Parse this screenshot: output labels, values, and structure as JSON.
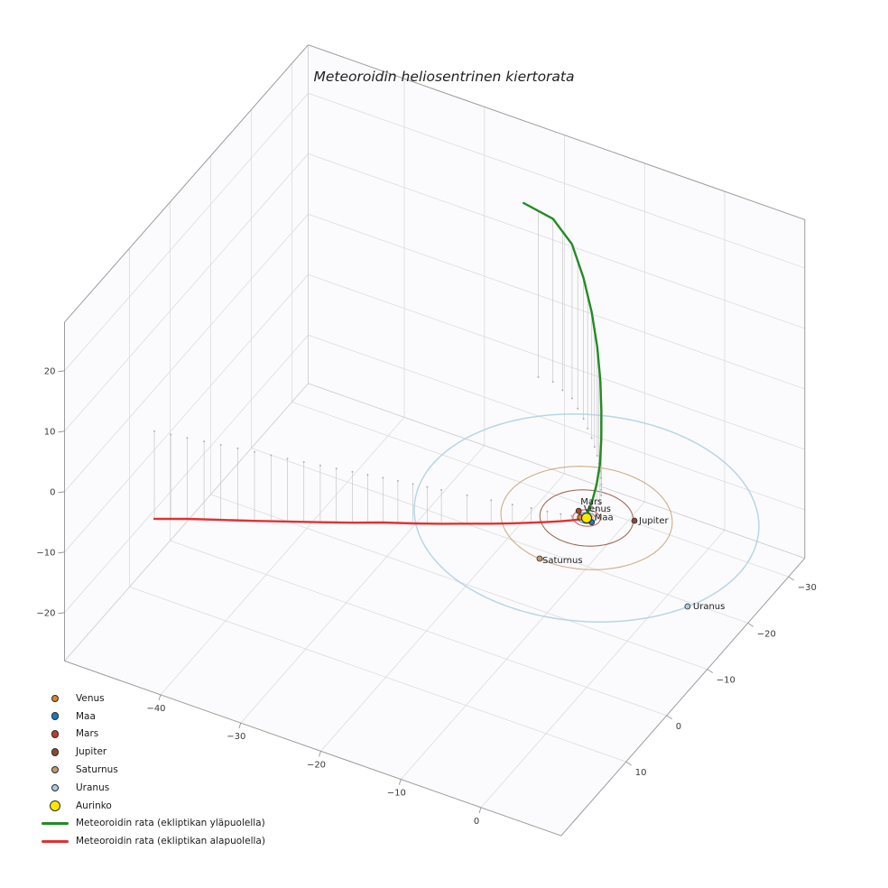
{
  "title": "Meteoroidin heliosentrinen kiertorata",
  "chart_data": {
    "type": "line",
    "projection": "3d",
    "title": "Meteoroidin heliosentrinen kiertorata",
    "grid": true,
    "legend_position": "lower-left",
    "axes": {
      "x": {
        "ticks": [
          -40,
          -30,
          -20,
          -10,
          0
        ],
        "range": [
          -52,
          10
        ]
      },
      "y": {
        "ticks": [
          -30,
          -20,
          -10,
          0,
          10
        ],
        "range": [
          -34,
          26
        ]
      },
      "z": {
        "ticks": [
          -20,
          -10,
          0,
          10,
          20
        ],
        "range": [
          -28,
          28
        ]
      }
    },
    "sun": {
      "label": "Aurinko",
      "position": [
        0,
        0,
        0
      ],
      "color": "#ffe800"
    },
    "planets": [
      {
        "name": "Venus",
        "orbit_radius_au": 0.72,
        "position": [
          -0.67,
          0.25,
          0
        ],
        "color": "#d4862a"
      },
      {
        "name": "Maa",
        "orbit_radius_au": 1.0,
        "position": [
          0.85,
          0.4,
          0
        ],
        "color": "#1f77b4"
      },
      {
        "name": "Mars",
        "orbit_radius_au": 1.52,
        "position": [
          -1.35,
          -0.7,
          0
        ],
        "color": "#bc3d28"
      },
      {
        "name": "Jupiter",
        "orbit_radius_au": 5.2,
        "position": [
          4.79,
          -2.33,
          0
        ],
        "color": "#8a4a32"
      },
      {
        "name": "Saturnus",
        "orbit_radius_au": 9.54,
        "position": [
          -1.08,
          9.43,
          0
        ],
        "color": "#c49a6c"
      },
      {
        "name": "Uranus",
        "orbit_radius_au": 19.19,
        "position": [
          17.04,
          8.73,
          0
        ],
        "color": "#a9cce3"
      }
    ],
    "trajectories": {
      "above": {
        "label": "Meteoroidin rata (ekliptikan yläpuolella)",
        "color": "#228b22",
        "points": [
          [
            -0.05,
            0.1,
            0.1
          ],
          [
            0.1,
            -0.35,
            1.0
          ],
          [
            0.25,
            -1.0,
            2.4
          ],
          [
            0.3,
            -1.9,
            4.3
          ],
          [
            0.1,
            -3.1,
            6.6
          ],
          [
            -0.5,
            -4.6,
            9.3
          ],
          [
            -1.4,
            -6.4,
            12.2
          ],
          [
            -2.6,
            -8.5,
            15.1
          ],
          [
            -4.2,
            -10.9,
            18.0
          ],
          [
            -6.2,
            -13.5,
            20.8
          ],
          [
            -8.6,
            -16.2,
            23.3
          ],
          [
            -11.4,
            -18.9,
            25.5
          ],
          [
            -14.6,
            -20.5,
            27.0
          ],
          [
            -18.2,
            -20.4,
            28.0
          ]
        ]
      },
      "below": {
        "label": "Meteoroidin rata (ekliptikan alapuolella)",
        "color": "#e53030",
        "points": [
          [
            -48.5,
            10.8,
            -14.5
          ],
          [
            -44.8,
            10.0,
            -13.4
          ],
          [
            -41.0,
            9.2,
            -12.4
          ],
          [
            -37.2,
            8.4,
            -11.4
          ],
          [
            -33.5,
            7.6,
            -10.4
          ],
          [
            -29.8,
            6.8,
            -9.4
          ],
          [
            -26.2,
            6.0,
            -8.4
          ],
          [
            -22.8,
            5.2,
            -7.4
          ],
          [
            -19.4,
            4.5,
            -6.5
          ],
          [
            -16.2,
            3.8,
            -5.6
          ],
          [
            -13.3,
            3.2,
            -4.7
          ],
          [
            -10.6,
            2.6,
            -3.9
          ],
          [
            -8.2,
            2.1,
            -3.1
          ],
          [
            -6.1,
            1.6,
            -2.4
          ],
          [
            -4.3,
            1.2,
            -1.75
          ],
          [
            -2.8,
            0.85,
            -1.2
          ],
          [
            -1.6,
            0.5,
            -0.75
          ],
          [
            -0.8,
            0.25,
            -0.4
          ],
          [
            -0.3,
            0.1,
            -0.15
          ],
          [
            -0.05,
            0.02,
            -0.03
          ]
        ]
      }
    },
    "legend": {
      "items": [
        {
          "label": "Venus",
          "swatch": "marker",
          "color": "#d4862a"
        },
        {
          "label": "Maa",
          "swatch": "marker",
          "color": "#1f77b4"
        },
        {
          "label": "Mars",
          "swatch": "marker",
          "color": "#bc3d28"
        },
        {
          "label": "Jupiter",
          "swatch": "marker",
          "color": "#8a4a32"
        },
        {
          "label": "Saturnus",
          "swatch": "marker",
          "color": "#c49a6c"
        },
        {
          "label": "Uranus",
          "swatch": "marker",
          "color": "#a9cce3"
        },
        {
          "label": "Aurinko",
          "swatch": "marker-large",
          "color": "#ffe800"
        },
        {
          "label": "Meteoroidin rata (ekliptikan yläpuolella)",
          "swatch": "line",
          "color": "#228b22"
        },
        {
          "label": "Meteoroidin rata (ekliptikan alapuolella)",
          "swatch": "line",
          "color": "#e53030"
        }
      ]
    }
  }
}
